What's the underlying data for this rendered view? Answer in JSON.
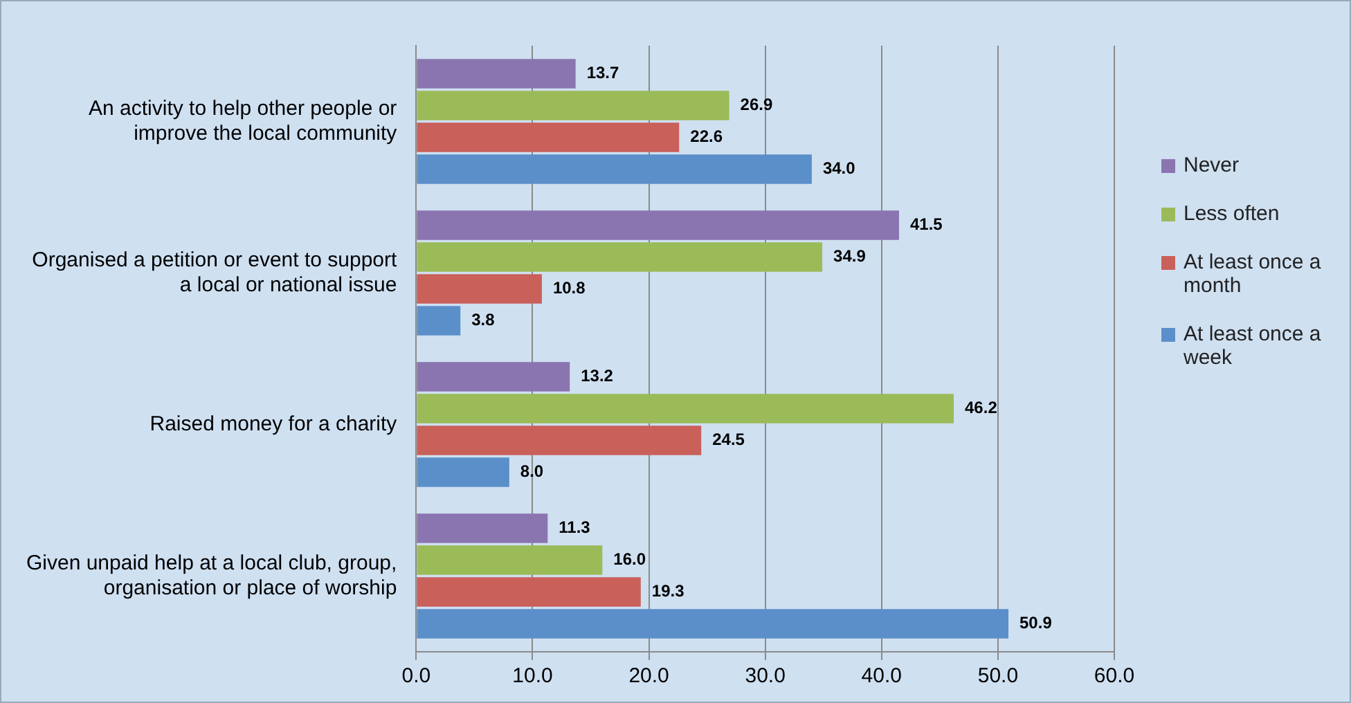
{
  "chart_data": {
    "type": "bar",
    "orientation": "horizontal",
    "categories": [
      "An activity to help other people or improve the local community",
      "Organised a petition or event to support a local or national issue",
      "Raised money for a charity",
      "Given unpaid help at a local club, group, organisation or place of worship"
    ],
    "series": [
      {
        "name": "Never",
        "color": "#8b75b0",
        "values": [
          13.7,
          41.5,
          13.2,
          11.3
        ],
        "value_labels": [
          "13.7",
          "41.5",
          "13.2",
          "11.3"
        ]
      },
      {
        "name": "Less often",
        "color": "#9bbb59",
        "values": [
          26.9,
          34.9,
          46.2,
          16.0
        ],
        "value_labels": [
          "26.9",
          "34.9",
          "46.2",
          "16.0"
        ]
      },
      {
        "name": "At least once a month",
        "color": "#c9605a",
        "values": [
          22.6,
          10.8,
          24.5,
          19.3
        ],
        "value_labels": [
          "22.6",
          "10.8",
          "24.5",
          "19.3"
        ]
      },
      {
        "name": "At least once a week",
        "color": "#5b8fca",
        "values": [
          34.0,
          3.8,
          8.0,
          50.9
        ],
        "value_labels": [
          "34.0",
          "3.8",
          "8.0",
          "50.9"
        ]
      }
    ],
    "xlim": [
      0,
      60
    ],
    "xticks": [
      {
        "value": 0,
        "label": "0.0"
      },
      {
        "value": 10,
        "label": "10.0"
      },
      {
        "value": 20,
        "label": "20.0"
      },
      {
        "value": 30,
        "label": "30.0"
      },
      {
        "value": 40,
        "label": "40.0"
      },
      {
        "value": 50,
        "label": "50.0"
      },
      {
        "value": 60,
        "label": "60.0"
      }
    ],
    "grid": "x",
    "legend": "right"
  }
}
